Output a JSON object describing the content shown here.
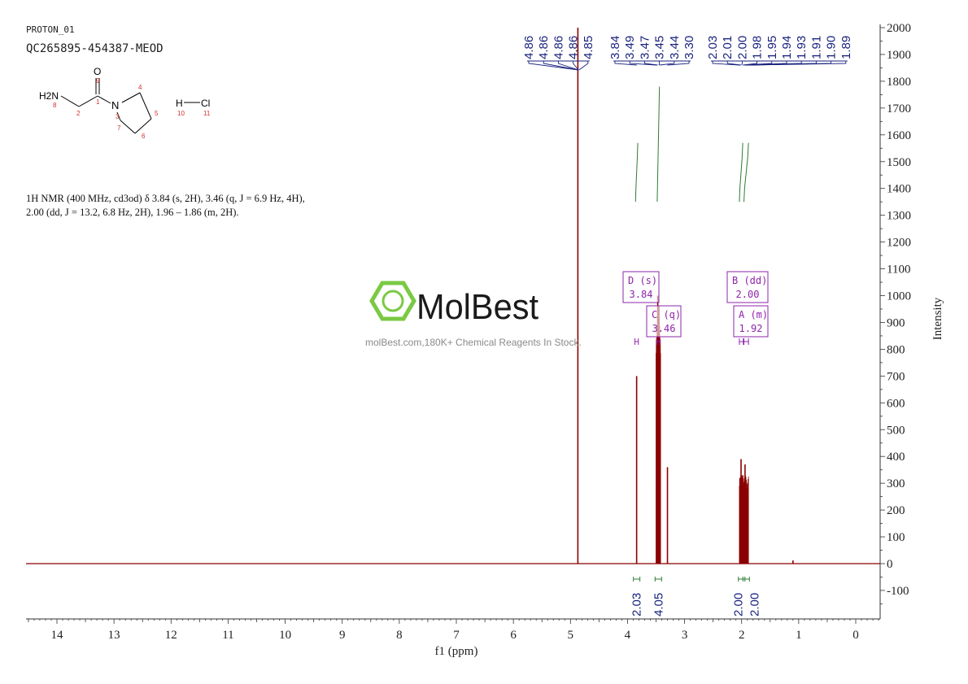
{
  "header": {
    "experiment": "PROTON_01",
    "sample": "QC265895-454387-MEOD"
  },
  "structure": {
    "atoms": {
      "nh2": "H2N",
      "n_index": "8",
      "c2": "2",
      "c1": "1",
      "o": "O",
      "o_index": "9",
      "n": "N",
      "n3": "3",
      "c4": "4",
      "c5": "5",
      "c6": "6",
      "c7": "7",
      "h": "H",
      "h_index": "10",
      "cl": "Cl",
      "cl_index": "11"
    }
  },
  "nmr_summary": {
    "line1": "1H NMR (400 MHz, cd3od) δ 3.84 (s, 2H), 3.46 (q, J = 6.9 Hz, 4H),",
    "line2": "2.00 (dd, J = 13.2, 6.8 Hz, 2H), 1.96 – 1.86 (m, 2H)."
  },
  "watermark": {
    "brand": "MolBest",
    "tagline": "molBest.com,180K+ Chemical Reagents In Stock."
  },
  "colors": {
    "spectrum": "#8b0000",
    "peak_labels": "#1a237e",
    "integral": "#2e7d32",
    "multiplet_box": "#8e24aa",
    "logo": "#7ac943",
    "axis": "#333333"
  },
  "chart_data": {
    "type": "line",
    "xlabel": "f1 (ppm)",
    "ylabel": "Intensity",
    "xlim": [
      14.6,
      -0.4
    ],
    "ylim": [
      -200,
      2000
    ],
    "x_ticks": [
      14,
      13,
      12,
      11,
      10,
      9,
      8,
      7,
      6,
      5,
      4,
      3,
      2,
      1,
      0
    ],
    "y_ticks": [
      -100,
      0,
      100,
      200,
      300,
      400,
      500,
      600,
      700,
      800,
      900,
      1000,
      1100,
      1200,
      1300,
      1400,
      1500,
      1600,
      1700,
      1800,
      1900,
      2000
    ],
    "peaks": [
      {
        "ppm": 4.87,
        "height": 2000
      },
      {
        "ppm": 3.84,
        "height": 700
      },
      {
        "ppm": 3.49,
        "height": 300
      },
      {
        "ppm": 3.47,
        "height": 1000
      },
      {
        "ppm": 3.45,
        "height": 960
      },
      {
        "ppm": 3.44,
        "height": 390
      },
      {
        "ppm": 3.3,
        "height": 360
      },
      {
        "ppm": 2.03,
        "height": 320
      },
      {
        "ppm": 2.01,
        "height": 390
      },
      {
        "ppm": 2.0,
        "height": 280
      },
      {
        "ppm": 1.98,
        "height": 330
      },
      {
        "ppm": 1.95,
        "height": 300
      },
      {
        "ppm": 1.94,
        "height": 370
      },
      {
        "ppm": 1.93,
        "height": 280
      },
      {
        "ppm": 1.91,
        "height": 240
      },
      {
        "ppm": 1.9,
        "height": 200
      },
      {
        "ppm": 1.89,
        "height": 100
      },
      {
        "ppm": 1.1,
        "height": 12
      }
    ],
    "peak_labels": [
      "4.86",
      "4.86",
      "4.86",
      "4.86",
      "4.85",
      "3.84",
      "3.49",
      "3.47",
      "3.45",
      "3.44",
      "3.30",
      "2.03",
      "2.01",
      "2.00",
      "1.98",
      "1.95",
      "1.94",
      "1.93",
      "1.91",
      "1.90",
      "1.89"
    ],
    "peak_label_ppm": [
      4.86,
      4.86,
      4.86,
      4.86,
      4.85,
      3.84,
      3.49,
      3.47,
      3.45,
      3.44,
      3.3,
      2.03,
      2.01,
      2.0,
      1.98,
      1.95,
      1.94,
      1.93,
      1.91,
      1.9,
      1.89
    ],
    "integrals": [
      {
        "ppm_center": 3.84,
        "value": "2.03",
        "curve_from": 3.86,
        "curve_to": 3.82,
        "y_low": 1350,
        "y_high": 1570
      },
      {
        "ppm_center": 3.46,
        "value": "4.05",
        "curve_from": 3.48,
        "curve_to": 3.44,
        "y_low": 1350,
        "y_high": 1780
      },
      {
        "ppm_center": 2.0,
        "value": "2.00",
        "curve_from": 2.04,
        "curve_to": 1.98,
        "y_low": 1350,
        "y_high": 1570
      },
      {
        "ppm_center": 1.92,
        "value": "2.00",
        "curve_from": 1.96,
        "curve_to": 1.88,
        "y_low": 1350,
        "y_high": 1570
      }
    ],
    "multiplets": [
      {
        "letter": "D",
        "type": "(s)",
        "shift": "3.84",
        "ppm": 3.84,
        "ppm_range": [
          3.87,
          3.81
        ]
      },
      {
        "letter": "C",
        "type": "(q)",
        "shift": "3.46",
        "ppm": 3.46,
        "ppm_range": [
          3.49,
          3.43
        ]
      },
      {
        "letter": "B",
        "type": "(dd)",
        "shift": "2.00",
        "ppm": 2.0,
        "ppm_range": [
          2.04,
          1.97
        ]
      },
      {
        "letter": "A",
        "type": "(m)",
        "shift": "1.92",
        "ppm": 1.92,
        "ppm_range": [
          1.96,
          1.88
        ]
      }
    ]
  }
}
